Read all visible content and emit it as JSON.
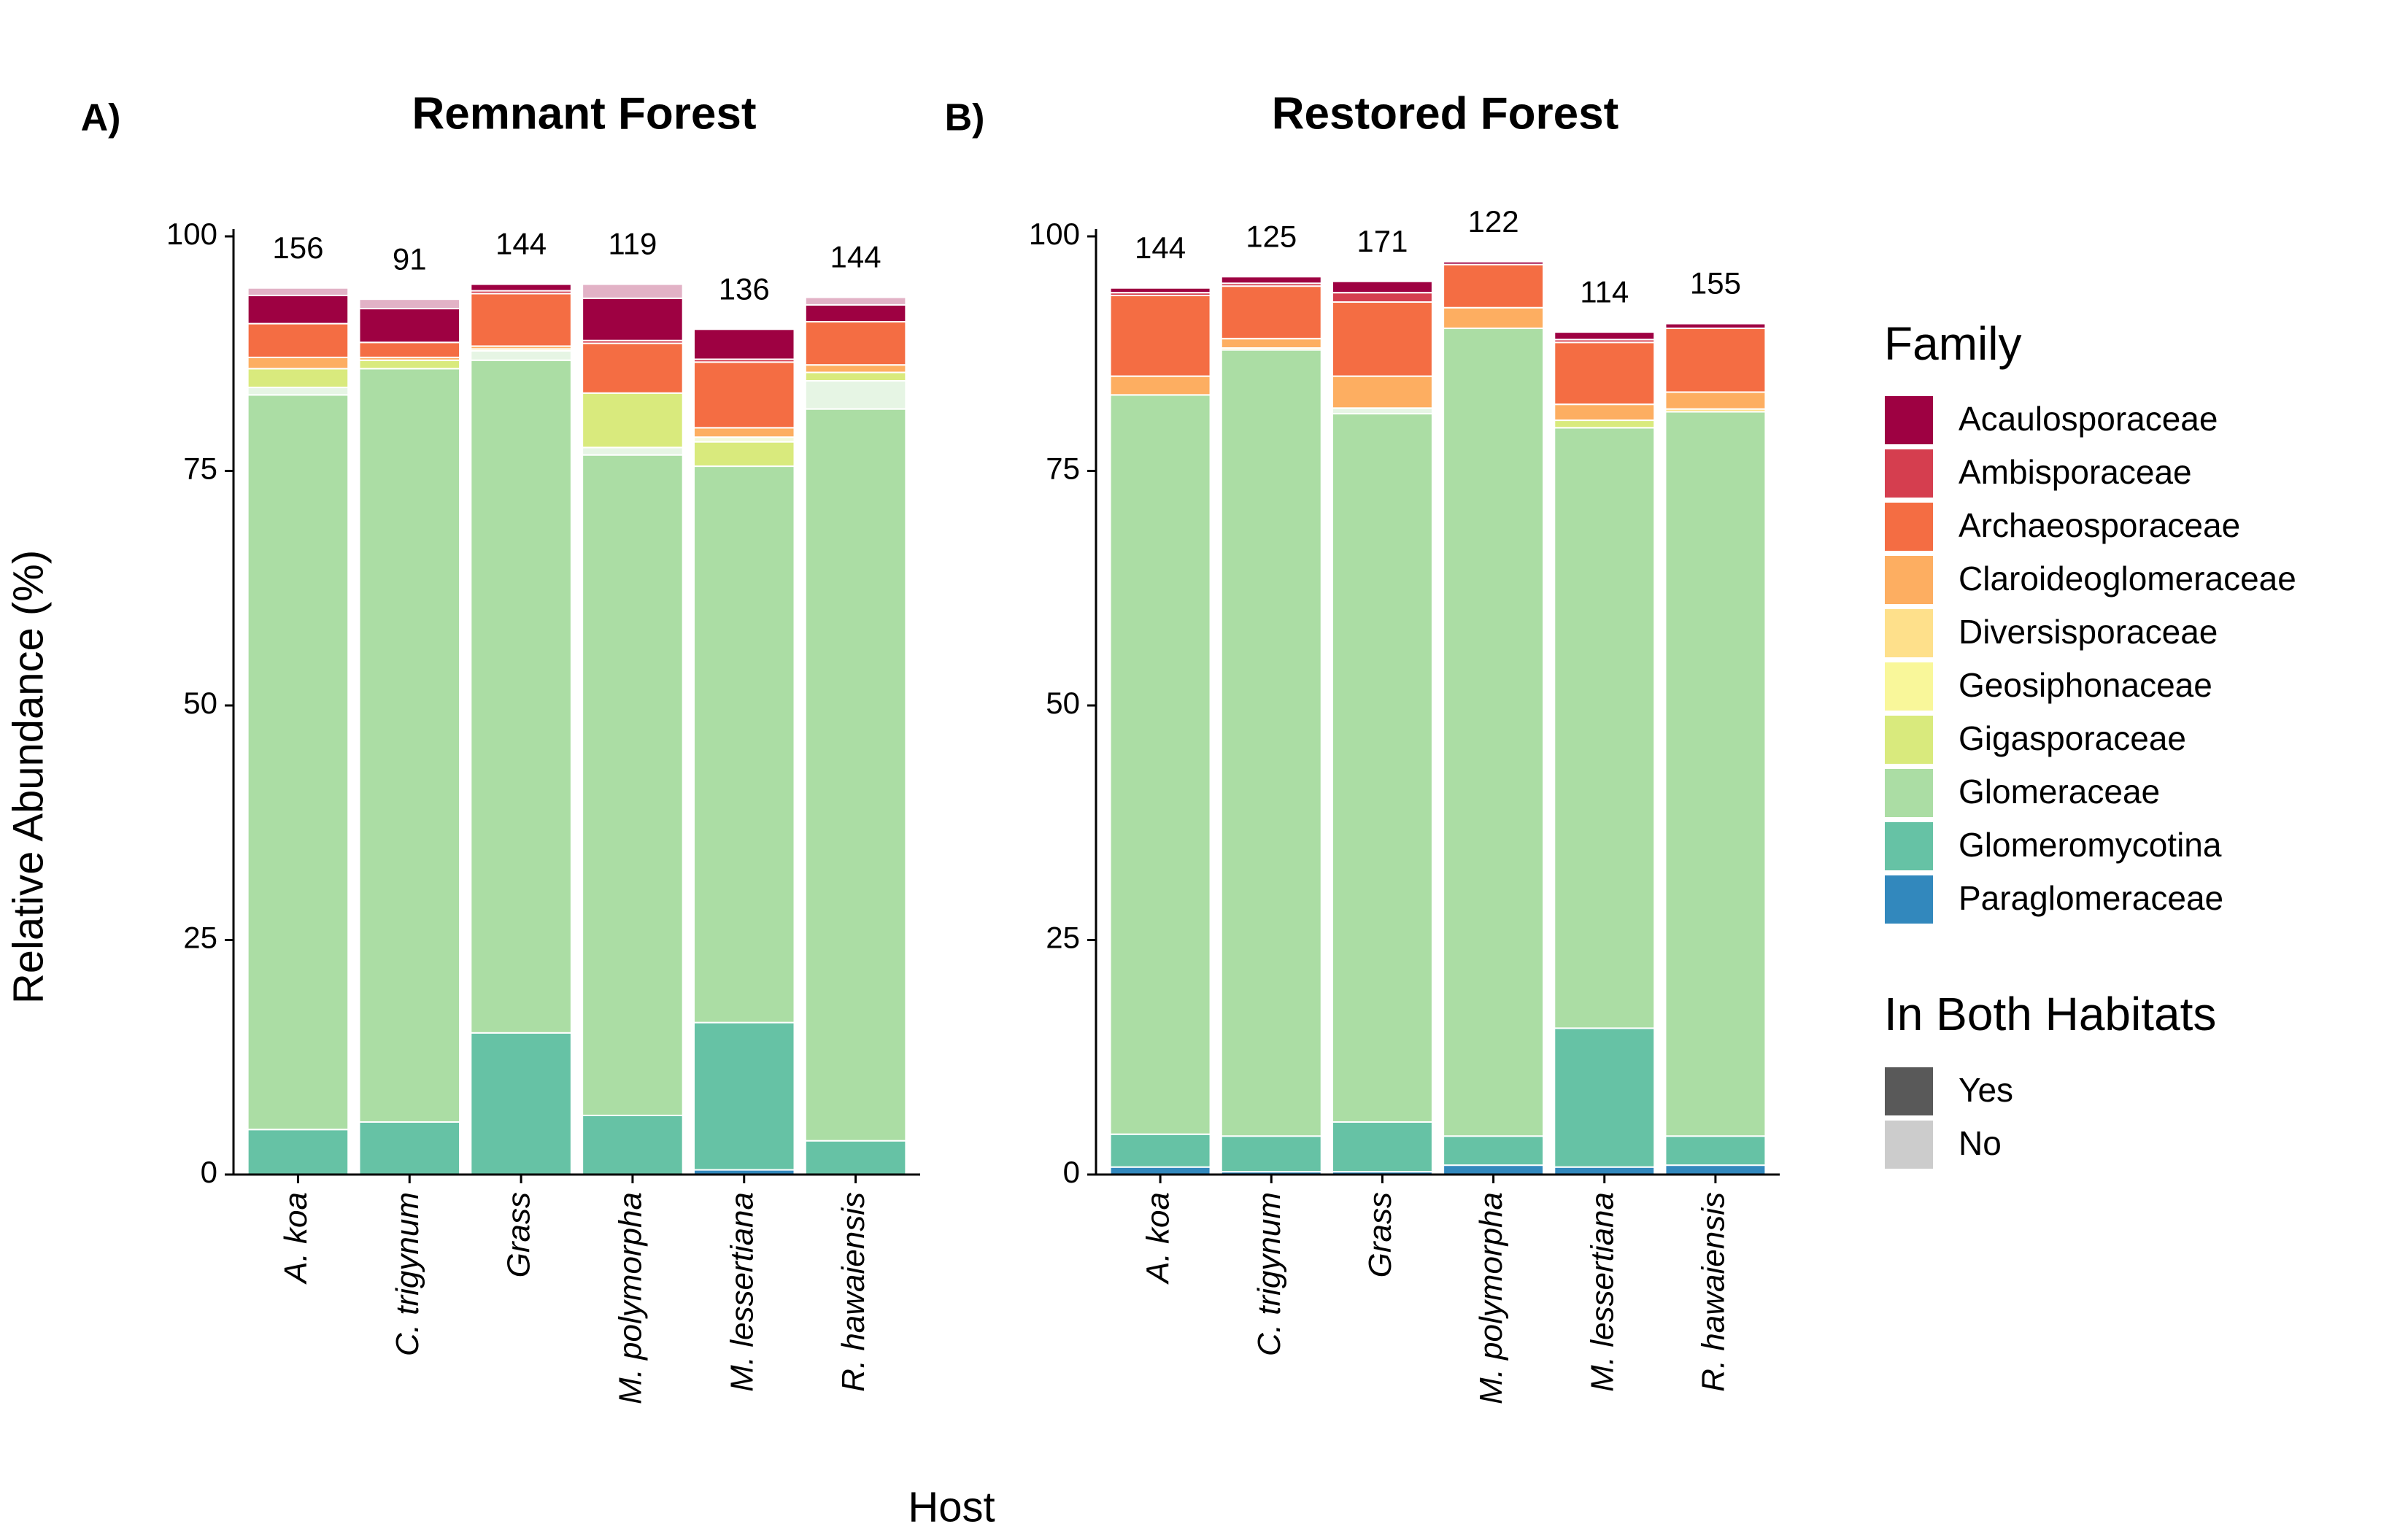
{
  "legend_title": "Family",
  "habitat_title": "In Both Habitats",
  "habitat": [
    {
      "name": "Yes",
      "color": "#595959"
    },
    {
      "name": "No",
      "color": "#cccccc"
    }
  ],
  "xlabel": "Host",
  "ylabel": "Relative Abundance (%)",
  "chart_data": [
    {
      "type": "bar",
      "panel": "A)",
      "title": "Remnant Forest",
      "categories": [
        "A. koa",
        "C. trigynum",
        "Grass",
        "M. polymorpha",
        "M. lessertiana",
        "R. hawaiensis"
      ],
      "n_labels": [
        156,
        91,
        144,
        119,
        136,
        144
      ],
      "ylim": [
        0,
        100
      ],
      "yticks": [
        0,
        25,
        50,
        75,
        100
      ],
      "series": [
        {
          "name": "Acaulosporaceae",
          "color": "#9e0142",
          "values": [
            3.0,
            3.6,
            0.7,
            4.5,
            3.2,
            1.8
          ],
          "values_no": [
            0.8,
            1.0,
            0,
            1.5,
            0,
            0.8
          ]
        },
        {
          "name": "Ambisporaceae",
          "color": "#d53e4f",
          "values": [
            0,
            0,
            0.3,
            0.3,
            0.3,
            0
          ],
          "values_no": [
            0,
            0,
            0,
            0,
            0,
            0
          ]
        },
        {
          "name": "Archaeosporaceae",
          "color": "#f46d43",
          "values": [
            3.6,
            1.6,
            5.6,
            5.3,
            7.0,
            4.6
          ],
          "values_no": [
            0,
            0,
            0,
            0,
            0,
            0
          ]
        },
        {
          "name": "Claroideoglomeraceae",
          "color": "#fdae61",
          "values": [
            1.2,
            0.3,
            0.3,
            0,
            1.0,
            0.8
          ],
          "values_no": [
            0,
            0,
            0,
            0,
            0,
            0
          ]
        },
        {
          "name": "Diversisporaceae",
          "color": "#fee08b",
          "values": [
            0,
            0,
            0.2,
            0,
            0,
            0
          ],
          "values_no": [
            0,
            0,
            0,
            0,
            0,
            0
          ]
        },
        {
          "name": "Geosiphonaceae",
          "color": "#f9f79a",
          "values": [
            0,
            0,
            0,
            0,
            0,
            0
          ],
          "values_no": [
            0,
            0,
            0,
            0,
            0,
            0
          ]
        },
        {
          "name": "Gigasporaceae",
          "color": "#d9ea7d",
          "values": [
            2.0,
            0.9,
            0,
            5.8,
            2.6,
            0.9
          ],
          "values_no": [
            0,
            0,
            0,
            0,
            0.5,
            0
          ]
        },
        {
          "name": "Glomeraceae",
          "color": "#abdda4",
          "values": [
            78.3,
            80.3,
            71.7,
            70.4,
            59.3,
            78.0
          ],
          "values_no": [
            0.8,
            0,
            1.0,
            0.8,
            0,
            3.0
          ]
        },
        {
          "name": "Glomeromycotina",
          "color": "#66c2a5",
          "values": [
            4.8,
            5.6,
            15.1,
            6.3,
            15.7,
            3.6
          ],
          "values_no": [
            0,
            0,
            0,
            0,
            0,
            0
          ]
        },
        {
          "name": "Paraglomeraceae",
          "color": "#3288bd",
          "values": [
            0,
            0,
            0,
            0,
            0.5,
            0
          ],
          "values_no": [
            0,
            0,
            0,
            0,
            0,
            0
          ]
        }
      ]
    },
    {
      "type": "bar",
      "panel": "B)",
      "title": "Restored Forest",
      "categories": [
        "A. koa",
        "C. trigynum",
        "Grass",
        "M. polymorpha",
        "M. lessertiana",
        "R. hawaiensis"
      ],
      "n_labels": [
        144,
        125,
        171,
        122,
        114,
        155
      ],
      "ylim": [
        0,
        100
      ],
      "yticks": [
        0,
        25,
        50,
        75,
        100
      ],
      "series": [
        {
          "name": "Acaulosporaceae",
          "color": "#9e0142",
          "values": [
            0.5,
            0.7,
            1.2,
            0.3,
            0.8,
            0.5
          ],
          "values_no": [
            0,
            0,
            0,
            0,
            0,
            0
          ]
        },
        {
          "name": "Ambisporaceae",
          "color": "#d53e4f",
          "values": [
            0.3,
            0.3,
            1.0,
            0,
            0.3,
            0
          ],
          "values_no": [
            0,
            0,
            0,
            0,
            0,
            0
          ]
        },
        {
          "name": "Archaeosporaceae",
          "color": "#f46d43",
          "values": [
            8.6,
            5.6,
            7.9,
            4.6,
            6.6,
            6.8
          ],
          "values_no": [
            0,
            0,
            0,
            0,
            0,
            0
          ]
        },
        {
          "name": "Claroideoglomeraceae",
          "color": "#fdae61",
          "values": [
            2.0,
            1.0,
            3.4,
            2.2,
            1.7,
            1.8
          ],
          "values_no": [
            0,
            0,
            0,
            0,
            0,
            0
          ]
        },
        {
          "name": "Diversisporaceae",
          "color": "#fee08b",
          "values": [
            0,
            0.2,
            0,
            0,
            0,
            0.3
          ],
          "values_no": [
            0,
            0,
            0,
            0,
            0,
            0
          ]
        },
        {
          "name": "Geosiphonaceae",
          "color": "#f9f79a",
          "values": [
            0,
            0,
            0,
            0,
            0,
            0
          ],
          "values_no": [
            0,
            0,
            0,
            0,
            0,
            0
          ]
        },
        {
          "name": "Gigasporaceae",
          "color": "#d9ea7d",
          "values": [
            0,
            0,
            0,
            0,
            0.8,
            0
          ],
          "values_no": [
            0,
            0,
            0,
            0,
            0,
            0
          ]
        },
        {
          "name": "Glomeraceae",
          "color": "#abdda4",
          "values": [
            78.8,
            83.8,
            75.5,
            86.1,
            64.0,
            77.2
          ],
          "values_no": [
            0,
            0,
            0.6,
            0,
            0,
            0
          ]
        },
        {
          "name": "Glomeromycotina",
          "color": "#66c2a5",
          "values": [
            3.5,
            3.8,
            5.3,
            3.1,
            14.8,
            3.1
          ],
          "values_no": [
            0,
            0,
            0,
            0,
            0,
            0
          ]
        },
        {
          "name": "Paraglomeraceae",
          "color": "#3288bd",
          "values": [
            0.8,
            0.3,
            0.3,
            1.0,
            0.8,
            1.0
          ],
          "values_no": [
            0,
            0,
            0,
            0,
            0,
            0
          ]
        }
      ]
    }
  ]
}
